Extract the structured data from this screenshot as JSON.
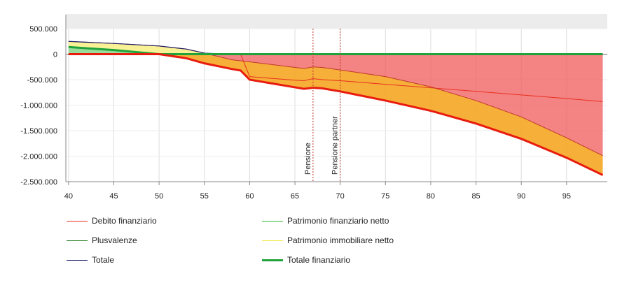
{
  "chart_data": {
    "type": "area",
    "x": [
      40,
      45,
      50,
      53,
      55,
      58,
      59,
      60,
      65,
      66,
      67,
      68,
      70,
      75,
      80,
      85,
      90,
      95,
      99
    ],
    "xlim": [
      39.7,
      99.5
    ],
    "ylim": [
      -2500000,
      500000
    ],
    "x_ticks": [
      40,
      45,
      50,
      55,
      60,
      65,
      70,
      75,
      80,
      85,
      90,
      95
    ],
    "y_ticks": [
      500000,
      0,
      -500000,
      -1000000,
      -1500000,
      -2000000,
      -2500000
    ],
    "x_tick_labels": [
      "40",
      "45",
      "50",
      "55",
      "60",
      "65",
      "70",
      "75",
      "80",
      "85",
      "90",
      "95"
    ],
    "y_tick_labels": [
      "500.000",
      "0",
      "-500.000",
      "-1.000.000",
      "-1.500.000",
      "-2.000.000",
      "-2.500.000"
    ],
    "grid": true,
    "legend_position": "bottom",
    "series": [
      {
        "name": "Debito finanziario",
        "color": "#e8301f",
        "values": [
          0,
          0,
          0,
          0,
          0,
          0,
          0,
          -440000,
          -510000,
          -520000,
          -480000,
          -500000,
          -520000,
          -590000,
          -660000,
          -730000,
          -800000,
          -870000,
          -930000
        ]
      },
      {
        "name": "Patrimonio finanziario netto",
        "color": "#2eb82e",
        "values": [
          0,
          0,
          0,
          0,
          0,
          0,
          0,
          0,
          0,
          0,
          0,
          0,
          0,
          0,
          0,
          0,
          0,
          0,
          0
        ]
      },
      {
        "name": "Plusvalenze",
        "color": "#1a7a1a",
        "values": [
          0,
          0,
          0,
          0,
          0,
          0,
          0,
          0,
          0,
          0,
          0,
          0,
          0,
          0,
          0,
          0,
          0,
          0,
          0
        ]
      },
      {
        "name": "Patrimonio immobiliare netto",
        "color": "#f2e63a",
        "values": [
          250000,
          210000,
          160000,
          100000,
          20000,
          -110000,
          -130000,
          -150000,
          -260000,
          -280000,
          -250000,
          -260000,
          -310000,
          -440000,
          -640000,
          -910000,
          -1230000,
          -1640000,
          -1990000
        ]
      },
      {
        "name": "Totale",
        "color": "#1a1a66",
        "values": [
          250000,
          210000,
          160000,
          100000,
          20000,
          -110000,
          -130000,
          -150000,
          -260000,
          -280000,
          -250000,
          -260000,
          -310000,
          -440000,
          -640000,
          -910000,
          -1230000,
          -1640000,
          -1990000
        ]
      },
      {
        "name": "Totale finanziario",
        "color": "#1fa33a",
        "values": [
          140000,
          80000,
          0,
          -80000,
          -180000,
          -290000,
          -320000,
          -500000,
          -650000,
          -680000,
          -660000,
          -670000,
          -730000,
          -910000,
          -1110000,
          -1360000,
          -1660000,
          -2030000,
          -2370000
        ]
      }
    ],
    "annotations": [
      {
        "label": "Pensione",
        "x": 67
      },
      {
        "label": "Pensione partner",
        "x": 70
      }
    ]
  }
}
